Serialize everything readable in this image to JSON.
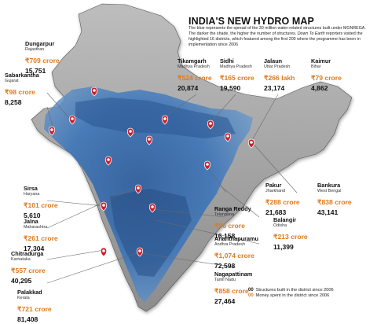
{
  "map": {
    "title": "INDIA'S NEW HYDRO MAP",
    "description_pre": "The blue represents the spread of the 30 million water-related structures built under MGNREGA. The darker the shade, the higher the number of structures. ",
    "description_source": "Down To Earth",
    "description_post": " reporters visited the highlighted 16 districts, which featured among the first 200 where the programme has been in implementation since 2006",
    "colors": {
      "water": "#3f76b8",
      "land_light": "#d6d6d6",
      "land_dark": "#6d6d6d",
      "money": "#e07a1f",
      "marker": "#c8202c"
    }
  },
  "districts": [
    {
      "name": "Dungarpur",
      "state": "Rajasthan",
      "money": "₹709 crore",
      "count": "15,751"
    },
    {
      "name": "Sabarkantha",
      "state": "Gujarat",
      "money": "₹98 crore",
      "count": "8,258"
    },
    {
      "name": "Tikamgarh",
      "state": "Madhya Pradesh",
      "money": "₹524 crore",
      "count": "20,874"
    },
    {
      "name": "Sidhi",
      "state": "Madhya Pradesh",
      "money": "₹165 crore",
      "count": "19,590"
    },
    {
      "name": "Jalaun",
      "state": "Uttar Pradesh",
      "money": "₹266 lakh",
      "count": "23,174"
    },
    {
      "name": "Kaimur",
      "state": "Bihar",
      "money": "₹79 crore",
      "count": "4,862"
    },
    {
      "name": "Sirsa",
      "state": "Haryana",
      "money": "₹101 crore",
      "count": "5,610"
    },
    {
      "name": "Jalna",
      "state": "Maharashtra",
      "money": "₹261 crore",
      "count": "17,304"
    },
    {
      "name": "Chitradurga",
      "state": "Karnataka",
      "money": "₹557 crore",
      "count": "40,295"
    },
    {
      "name": "Palakkad",
      "state": "Kerala",
      "money": "₹721 crore",
      "count": "81,408"
    },
    {
      "name": "Pakur",
      "state": "Jharkhand",
      "money": "₹288 crore",
      "count": "21,683"
    },
    {
      "name": "Bankura",
      "state": "West Bengal",
      "money": "₹838 crore",
      "count": "43,141"
    },
    {
      "name": "Balangir",
      "state": "Odisha",
      "money": "₹213 crore",
      "count": "11,399"
    },
    {
      "name": "Ranga Reddy",
      "state": "Telangana",
      "money": "₹86 crore",
      "count": "16,158"
    },
    {
      "name": "Ananthapuramu",
      "state": "Andhra Pradesh",
      "money": "₹1,074 crore",
      "count": "72,598"
    },
    {
      "name": "Nagapattinam",
      "state": "Tamil Nadu",
      "money": "₹858 crore",
      "count": "27,464"
    }
  ],
  "legend": {
    "structures_swatch": "00",
    "structures_label": "Structures built in the district since 2006",
    "money_swatch": "00",
    "money_label": "Money spent in the district since 2006"
  }
}
